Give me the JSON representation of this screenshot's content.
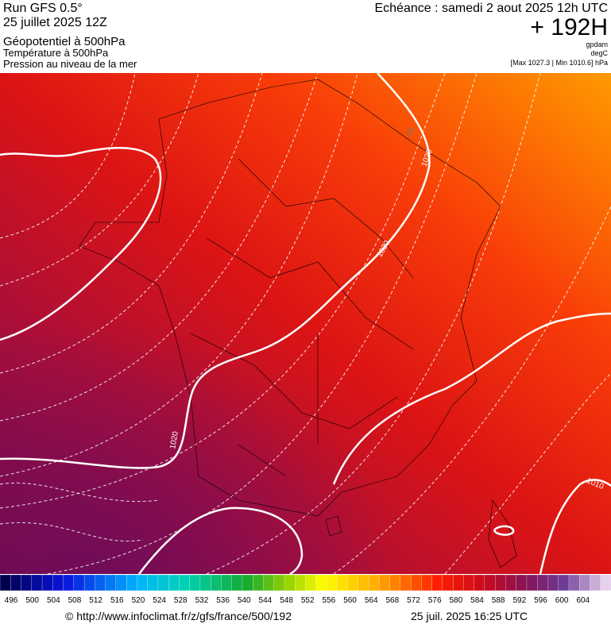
{
  "header": {
    "run": "Run GFS 0.5°",
    "date": "25 juillet 2025 12Z",
    "title": "Géopotentiel à 500hPa",
    "subtitle1": "Température à 500hPa",
    "subtitle2": "Pression au niveau de la mer",
    "valid": "Echéance : samedi 2 aout 2025 12h UTC",
    "lead": "+ 192H",
    "unit1": "gpdam",
    "unit2": "degC",
    "range": "[Max 1027.3 | Min 1010.6] hPa"
  },
  "map": {
    "contour_labels": [
      "1020",
      "1020",
      "1020",
      "1010",
      "16"
    ]
  },
  "colorbar": {
    "ticks": [
      496,
      500,
      504,
      508,
      512,
      516,
      520,
      524,
      528,
      532,
      536,
      540,
      544,
      548,
      552,
      556,
      560,
      564,
      568,
      572,
      576,
      580,
      584,
      588,
      592,
      596,
      600,
      604
    ]
  },
  "footer": {
    "url": "© http://www.infoclimat.fr/z/gfs/france/500/192",
    "timestamp": "25 juil. 2025 16:25 UTC"
  }
}
